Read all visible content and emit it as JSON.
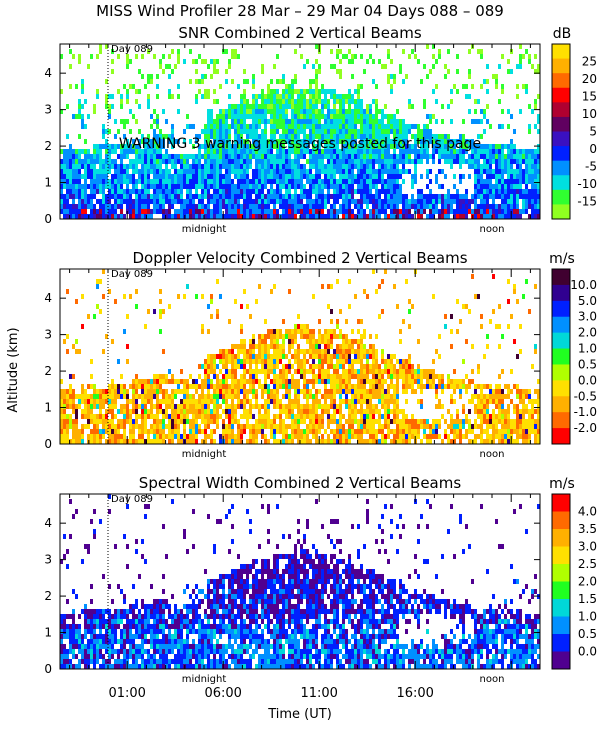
{
  "figure": {
    "title": "MISS Wind Profiler  28 Mar – 29 Mar 04 Days 088 – 089",
    "xlabel": "Time (UT)",
    "ylabel": "Altitude (km)",
    "warning": "WARNING  3 warning messages posted for this page",
    "day_marker_label": "Day 089",
    "midnight_label": "midnight",
    "noon_label": "noon",
    "x_tick_labels": [
      "01:00",
      "06:00",
      "11:00",
      "16:00"
    ],
    "y_tick_labels": [
      "0",
      "1",
      "2",
      "3",
      "4"
    ]
  },
  "chart_data": [
    {
      "type": "heatmap",
      "title": "SNR Combined 2 Vertical Beams",
      "colorbar_unit": "dB",
      "colorbar_labels": [
        "25",
        "20",
        "15",
        "10",
        "5",
        "0",
        "-5",
        "-10",
        "-15"
      ],
      "colorbar_colors": [
        "#ffe000",
        "#ffb000",
        "#ff6a00",
        "#ff0000",
        "#b00030",
        "#600060",
        "#3a10c0",
        "#0020ff",
        "#0090ff",
        "#00e0e0",
        "#30ff30",
        "#90ff20"
      ],
      "ylim": [
        0,
        4.8
      ],
      "xlim_hours": [
        -2.5,
        22.5
      ]
    },
    {
      "type": "heatmap",
      "title": "Doppler Velocity Combined 2 Vertical Beams",
      "colorbar_unit": "m/s",
      "colorbar_labels": [
        "10.0",
        "5.0",
        "3.0",
        "2.0",
        "1.0",
        "0.5",
        "0.0",
        "-0.5",
        "-1.0",
        "-2.0"
      ],
      "colorbar_colors": [
        "#400030",
        "#300090",
        "#0020ff",
        "#0090ff",
        "#00d8d8",
        "#20ff20",
        "#b0ff00",
        "#ffe000",
        "#ffb000",
        "#ff6a00",
        "#ff0000"
      ],
      "ylim": [
        0,
        4.8
      ],
      "xlim_hours": [
        -2.5,
        22.5
      ]
    },
    {
      "type": "heatmap",
      "title": "Spectral Width Combined 2 Vertical Beams",
      "colorbar_unit": "m/s",
      "colorbar_labels": [
        "4.0",
        "3.5",
        "3.0",
        "2.5",
        "2.0",
        "1.5",
        "1.0",
        "0.5",
        "0.0"
      ],
      "colorbar_colors": [
        "#ff0000",
        "#ff6a00",
        "#ffb000",
        "#ffe000",
        "#b0ff00",
        "#20ff20",
        "#00d8d8",
        "#0090ff",
        "#0020ff",
        "#500090"
      ],
      "ylim": [
        0,
        4.8
      ],
      "xlim_hours": [
        -2.5,
        22.5
      ]
    }
  ]
}
